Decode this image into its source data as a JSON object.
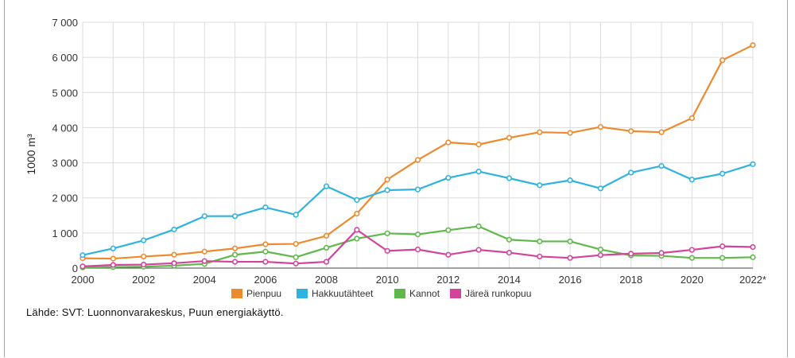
{
  "chart_data": {
    "type": "line",
    "ylabel": "1000 m³",
    "xlabel": "",
    "ylim": [
      0,
      7000
    ],
    "xlim": [
      2000,
      2022
    ],
    "grid": true,
    "legend_position": "bottom-center",
    "y_ticks": [
      {
        "value": 0,
        "label": "0"
      },
      {
        "value": 1000,
        "label": "1 000"
      },
      {
        "value": 2000,
        "label": "2 000"
      },
      {
        "value": 3000,
        "label": "3 000"
      },
      {
        "value": 4000,
        "label": "4 000"
      },
      {
        "value": 5000,
        "label": "5 000"
      },
      {
        "value": 6000,
        "label": "6 000"
      },
      {
        "value": 7000,
        "label": "7 000"
      }
    ],
    "x_ticks": [
      {
        "value": 2000,
        "label": "2000"
      },
      {
        "value": 2002,
        "label": "2002"
      },
      {
        "value": 2004,
        "label": "2004"
      },
      {
        "value": 2006,
        "label": "2006"
      },
      {
        "value": 2008,
        "label": "2008"
      },
      {
        "value": 2010,
        "label": "2010"
      },
      {
        "value": 2012,
        "label": "2012"
      },
      {
        "value": 2014,
        "label": "2014"
      },
      {
        "value": 2016,
        "label": "2016"
      },
      {
        "value": 2018,
        "label": "2018"
      },
      {
        "value": 2020,
        "label": "2020"
      },
      {
        "value": 2022,
        "label": "2022*"
      }
    ],
    "x": [
      2000,
      2001,
      2002,
      2003,
      2004,
      2005,
      2006,
      2007,
      2008,
      2009,
      2010,
      2011,
      2012,
      2013,
      2014,
      2015,
      2016,
      2017,
      2018,
      2019,
      2020,
      2021,
      2022
    ],
    "series": [
      {
        "name": "Pienpuu",
        "color": "#ec8a2d",
        "values": [
          280,
          270,
          330,
          380,
          470,
          560,
          680,
          690,
          920,
          1550,
          2520,
          3080,
          3580,
          3520,
          3710,
          3870,
          3850,
          4020,
          3900,
          3870,
          4270,
          5920,
          6350
        ]
      },
      {
        "name": "Hakkuutähteet",
        "color": "#2eb2e0",
        "values": [
          370,
          560,
          790,
          1100,
          1480,
          1480,
          1730,
          1520,
          2330,
          1940,
          2220,
          2240,
          2570,
          2750,
          2560,
          2360,
          2500,
          2270,
          2720,
          2910,
          2520,
          2690,
          2960
        ]
      },
      {
        "name": "Kannot",
        "color": "#5fb94a",
        "values": [
          20,
          30,
          40,
          70,
          120,
          380,
          470,
          310,
          580,
          840,
          990,
          960,
          1080,
          1190,
          810,
          760,
          760,
          530,
          360,
          350,
          290,
          290,
          310
        ]
      },
      {
        "name": "Järeä runkopuu",
        "color": "#d2449c",
        "values": [
          50,
          90,
          100,
          140,
          200,
          180,
          180,
          130,
          180,
          1090,
          490,
          530,
          380,
          520,
          440,
          330,
          290,
          370,
          410,
          430,
          520,
          620,
          600
        ]
      }
    ]
  },
  "source_note": "Lähde: SVT: Luonnonvarakeskus, Puun energiakäyttö."
}
